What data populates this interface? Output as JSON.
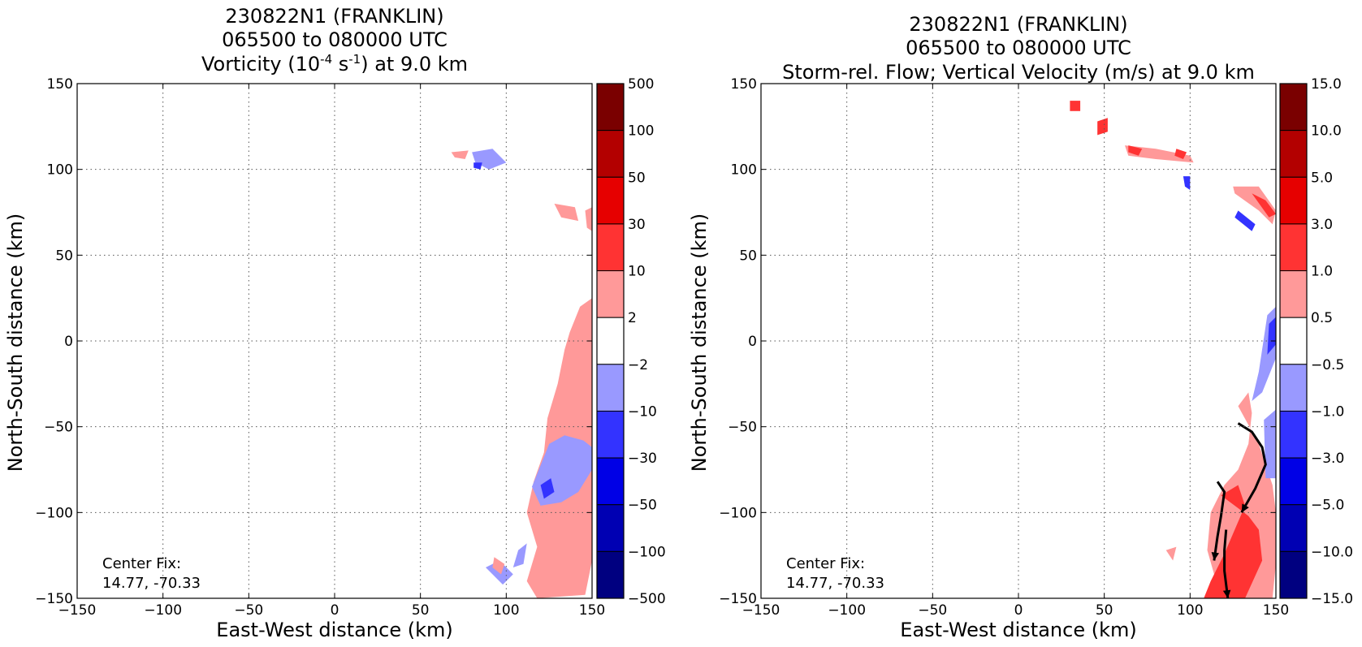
{
  "figure": {
    "background": "#ffffff"
  },
  "chart_data": [
    {
      "type": "heatmap",
      "panel": "left",
      "title": [
        "230822N1 (FRANKLIN)",
        "065500 to 080000 UTC",
        "Vorticity (10",
        "-4",
        " s",
        "-1",
        ") at 9.0 km"
      ],
      "title_line1": "230822N1 (FRANKLIN)",
      "title_line2": "065500 to 080000 UTC",
      "title_line3": {
        "pre": "Vorticity (10",
        "sup1": "-4",
        "mid": " s",
        "sup2": "-1",
        "post": ") at 9.0 km"
      },
      "xlabel": "East-West distance (km)",
      "ylabel": "North-South distance (km)",
      "xlim": [
        -150,
        150
      ],
      "ylim": [
        -150,
        150
      ],
      "xticks": [
        "−150",
        "−100",
        "−50",
        "0",
        "50",
        "100",
        "150"
      ],
      "yticks": [
        "150",
        "100",
        "50",
        "0",
        "−50",
        "−100",
        "−150"
      ],
      "grid": true,
      "annotation": {
        "line1": "Center Fix:",
        "line2": "14.77, -70.33"
      },
      "colorbar": {
        "labels": [
          "500",
          "100",
          "50",
          "30",
          "10",
          "2",
          "−2",
          "−10",
          "−30",
          "−50",
          "−100",
          "−500"
        ],
        "colors": [
          "#7a0000",
          "#b30000",
          "#e60000",
          "#ff3333",
          "#ff9999",
          "#ffffff",
          "#9999ff",
          "#3333ff",
          "#0000e6",
          "#0000b3",
          "#000080"
        ]
      },
      "regions": [
        {
          "level": "2",
          "color": "#ff9999",
          "polygon": [
            [
              137,
              5
            ],
            [
              143,
              20
            ],
            [
              150,
              25
            ],
            [
              150,
              -128
            ],
            [
              146,
              -148
            ],
            [
              118,
              -150
            ],
            [
              112,
              -140
            ],
            [
              118,
              -120
            ],
            [
              112,
              -100
            ],
            [
              116,
              -82
            ],
            [
              122,
              -65
            ],
            [
              124,
              -45
            ],
            [
              130,
              -25
            ],
            [
              134,
              -5
            ]
          ]
        },
        {
          "level": "-2",
          "color": "#9999ff",
          "polygon": [
            [
              125,
              -60
            ],
            [
              134,
              -55
            ],
            [
              145,
              -58
            ],
            [
              150,
              -62
            ],
            [
              150,
              -75
            ],
            [
              142,
              -88
            ],
            [
              132,
              -94
            ],
            [
              120,
              -96
            ],
            [
              115,
              -85
            ]
          ]
        },
        {
          "level": "-10",
          "color": "#3333ff",
          "polygon": [
            [
              120,
              -84
            ],
            [
              126,
              -80
            ],
            [
              128,
              -88
            ],
            [
              122,
              -92
            ]
          ]
        },
        {
          "level": "-2",
          "color": "#9999ff",
          "polygon": [
            [
              107,
              -122
            ],
            [
              112,
              -118
            ],
            [
              110,
              -130
            ],
            [
              104,
              -132
            ]
          ]
        },
        {
          "level": "2",
          "color": "#ff9999",
          "polygon": [
            [
              128,
              80
            ],
            [
              140,
              78
            ],
            [
              142,
              70
            ],
            [
              132,
              72
            ]
          ]
        },
        {
          "level": "2",
          "color": "#ff9999",
          "polygon": [
            [
              146,
              76
            ],
            [
              150,
              78
            ],
            [
              150,
              64
            ],
            [
              147,
              66
            ]
          ]
        },
        {
          "level": "-2",
          "color": "#9999ff",
          "polygon": [
            [
              80,
              110
            ],
            [
              92,
              112
            ],
            [
              100,
              104
            ],
            [
              90,
              100
            ],
            [
              82,
              104
            ]
          ]
        },
        {
          "level": "-10",
          "color": "#3333ff",
          "polygon": [
            [
              81,
              104
            ],
            [
              86,
              104
            ],
            [
              85,
              100
            ],
            [
              81,
              101
            ]
          ]
        },
        {
          "level": "2",
          "color": "#ff9999",
          "polygon": [
            [
              68,
              110
            ],
            [
              78,
              111
            ],
            [
              76,
              106
            ],
            [
              70,
              107
            ]
          ]
        },
        {
          "level": "-2",
          "color": "#9999ff",
          "polygon": [
            [
              88,
              -132
            ],
            [
              96,
              -128
            ],
            [
              104,
              -136
            ],
            [
              98,
              -142
            ]
          ]
        },
        {
          "level": "2",
          "color": "#ff9999",
          "polygon": [
            [
              93,
              -126
            ],
            [
              99,
              -130
            ],
            [
              97,
              -136
            ],
            [
              92,
              -132
            ]
          ]
        }
      ]
    },
    {
      "type": "heatmap",
      "panel": "right",
      "title_line1": "230822N1 (FRANKLIN)",
      "title_line2": "065500 to 080000 UTC",
      "title_line3": "Storm-rel. Flow; Vertical Velocity (m/s) at 9.0 km",
      "xlabel": "East-West distance (km)",
      "ylabel": "North-South distance (km)",
      "xlim": [
        -150,
        150
      ],
      "ylim": [
        -150,
        150
      ],
      "xticks": [
        "−150",
        "−100",
        "−50",
        "0",
        "50",
        "100",
        "150"
      ],
      "yticks": [
        "150",
        "100",
        "50",
        "0",
        "−50",
        "−100",
        "−150"
      ],
      "grid": true,
      "annotation": {
        "line1": "Center Fix:",
        "line2": "14.77, -70.33"
      },
      "colorbar": {
        "labels": [
          "15.0",
          "10.0",
          "5.0",
          "3.0",
          "1.0",
          "0.5",
          "−0.5",
          "−1.0",
          "−3.0",
          "−5.0",
          "−10.0",
          "−15.0"
        ],
        "colors": [
          "#7a0000",
          "#b30000",
          "#e60000",
          "#ff3333",
          "#ff9999",
          "#ffffff",
          "#9999ff",
          "#3333ff",
          "#0000e6",
          "#0000b3",
          "#000080"
        ]
      },
      "regions": [
        {
          "level": "0.5",
          "color": "#ff9999",
          "polygon": [
            [
              128,
              -38
            ],
            [
              134,
              -30
            ],
            [
              136,
              -42
            ],
            [
              134,
              -60
            ],
            [
              128,
              -75
            ],
            [
              120,
              -84
            ],
            [
              112,
              -100
            ],
            [
              110,
              -122
            ],
            [
              114,
              -136
            ],
            [
              112,
              -150
            ],
            [
              148,
              -150
            ],
            [
              150,
              -130
            ],
            [
              150,
              -100
            ],
            [
              148,
              -84
            ],
            [
              144,
              -72
            ],
            [
              140,
              -60
            ]
          ]
        },
        {
          "level": "1.0",
          "color": "#ff3333",
          "polygon": [
            [
              118,
              -90
            ],
            [
              128,
              -84
            ],
            [
              132,
              -96
            ],
            [
              126,
              -110
            ],
            [
              120,
              -124
            ],
            [
              112,
              -140
            ],
            [
              108,
              -150
            ],
            [
              132,
              -150
            ],
            [
              142,
              -128
            ],
            [
              140,
              -110
            ],
            [
              134,
              -102
            ]
          ]
        },
        {
          "level": "-0.5",
          "color": "#9999ff",
          "polygon": [
            [
              145,
              15
            ],
            [
              150,
              20
            ],
            [
              150,
              -10
            ],
            [
              142,
              -30
            ],
            [
              136,
              -35
            ],
            [
              140,
              -18
            ]
          ]
        },
        {
          "level": "-1.0",
          "color": "#3333ff",
          "polygon": [
            [
              146,
              10
            ],
            [
              150,
              14
            ],
            [
              150,
              -2
            ],
            [
              145,
              -8
            ]
          ]
        },
        {
          "level": "-0.5",
          "color": "#9999ff",
          "polygon": [
            [
              143,
              -46
            ],
            [
              150,
              -40
            ],
            [
              150,
              -80
            ],
            [
              144,
              -80
            ]
          ]
        },
        {
          "level": "0.5",
          "color": "#ff9999",
          "polygon": [
            [
              125,
              90
            ],
            [
              140,
              90
            ],
            [
              150,
              76
            ],
            [
              148,
              68
            ],
            [
              140,
              76
            ],
            [
              126,
              86
            ]
          ]
        },
        {
          "level": "1.0",
          "color": "#ff3333",
          "polygon": [
            [
              136,
              86
            ],
            [
              144,
              82
            ],
            [
              150,
              74
            ],
            [
              146,
              72
            ]
          ]
        },
        {
          "level": "-1.0",
          "color": "#3333ff",
          "polygon": [
            [
              128,
              76
            ],
            [
              138,
              68
            ],
            [
              136,
              64
            ],
            [
              126,
              72
            ]
          ]
        },
        {
          "level": "0.5",
          "color": "#ff9999",
          "polygon": [
            [
              62,
              114
            ],
            [
              80,
              112
            ],
            [
              100,
              108
            ],
            [
              102,
              104
            ],
            [
              80,
              106
            ],
            [
              64,
              108
            ]
          ]
        },
        {
          "level": "1.0",
          "color": "#ff3333",
          "polygon": [
            [
              64,
              114
            ],
            [
              72,
              112
            ],
            [
              70,
              108
            ],
            [
              64,
              110
            ]
          ]
        },
        {
          "level": "1.0",
          "color": "#ff3333",
          "polygon": [
            [
              92,
              112
            ],
            [
              98,
              110
            ],
            [
              96,
              106
            ],
            [
              91,
              108
            ]
          ]
        },
        {
          "level": "-1.0",
          "color": "#3333ff",
          "polygon": [
            [
              96,
              96
            ],
            [
              100,
              96
            ],
            [
              100,
              88
            ],
            [
              97,
              90
            ]
          ]
        },
        {
          "level": "1.0",
          "color": "#ff3333",
          "polygon": [
            [
              30,
              140
            ],
            [
              36,
              140
            ],
            [
              36,
              134
            ],
            [
              30,
              134
            ]
          ]
        },
        {
          "level": "1.0",
          "color": "#ff3333",
          "polygon": [
            [
              46,
              128
            ],
            [
              52,
              130
            ],
            [
              52,
              122
            ],
            [
              46,
              120
            ]
          ]
        },
        {
          "level": "0.5",
          "color": "#ff9999",
          "polygon": [
            [
              86,
              -122
            ],
            [
              92,
              -120
            ],
            [
              90,
              -128
            ]
          ]
        }
      ],
      "streamlines": [
        [
          [
            128,
            -48
          ],
          [
            136,
            -53
          ],
          [
            142,
            -62
          ],
          [
            144,
            -72
          ],
          [
            138,
            -86
          ],
          [
            130,
            -100
          ]
        ],
        [
          [
            116,
            -82
          ],
          [
            120,
            -88
          ],
          [
            118,
            -102
          ],
          [
            116,
            -114
          ],
          [
            114,
            -128
          ]
        ],
        [
          [
            121,
            -110
          ],
          [
            120,
            -122
          ],
          [
            120,
            -134
          ],
          [
            122,
            -150
          ]
        ]
      ]
    }
  ]
}
